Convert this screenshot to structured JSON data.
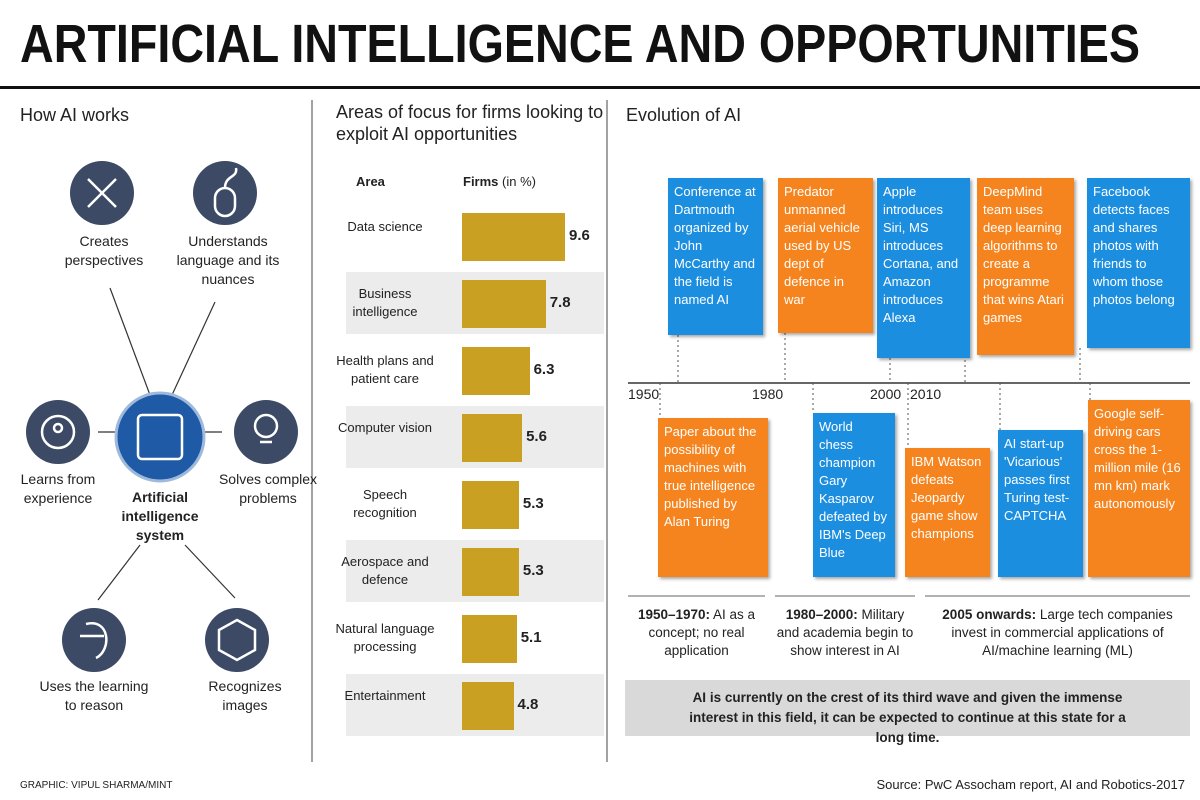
{
  "title": "ARTIFICIAL INTELLIGENCE AND OPPORTUNITIES",
  "how_ai_works": {
    "heading": "How AI works",
    "center": "Artificial intelligence system",
    "capabilities": [
      "Creates perspectives",
      "Understands language and its nuances",
      "Learns from experience",
      "Solves complex problems",
      "Uses the learning to reason",
      "Recognizes images"
    ]
  },
  "chart_data": {
    "type": "bar",
    "title": "Areas of focus for firms looking to exploit AI opportunities",
    "category_header": "Area",
    "value_header": "Firms",
    "value_unit": "(in %)",
    "categories": [
      "Data science",
      "Business intelligence",
      "Health plans and patient care",
      "Computer vision",
      "Speech recognition",
      "Aerospace and defence",
      "Natural language processing",
      "Entertainment"
    ],
    "values": [
      9.6,
      7.8,
      6.3,
      5.6,
      5.3,
      5.3,
      5.1,
      4.8
    ],
    "color": "#c9a021"
  },
  "evolution": {
    "heading": "Evolution of AI",
    "years": [
      1950,
      1980,
      2000,
      2010
    ],
    "events_above": [
      "Conference at Dartmouth organized by John McCarthy and the field is named AI",
      "Predator unmanned aerial vehicle used by US dept of defence in war",
      "Apple introduces Siri, MS introduces Cortana, and Amazon introduces Alexa",
      "DeepMind team uses deep learning algorithms to create a programme that wins Atari games",
      "Facebook detects faces and shares photos with friends to whom those photos belong"
    ],
    "events_below": [
      "Paper about the possibility of machines with true intelligence published by Alan Turing",
      "World chess champion Gary Kasparov defeated by IBM's Deep Blue",
      "IBM Watson defeats Jeopardy game show champions",
      "AI start-up 'Vicarious' passes first Turing test-CAPTCHA",
      "Google self-driving cars cross the 1-million mile (16 mn km) mark autonomously"
    ],
    "eras": [
      {
        "period": "1950–1970:",
        "text": "AI as a concept; no real application"
      },
      {
        "period": "1980–2000:",
        "text": "Military and academia begin to show interest in AI"
      },
      {
        "period": "2005 onwards:",
        "text": "Large tech companies invest in commercial applications of AI/machine learning (ML)"
      }
    ],
    "note": "AI is currently on the crest of its third wave and given the immense interest in this field, it can be expected to continue at this state for a long time."
  },
  "credit": "GRAPHIC: VIPUL SHARMA/MINT",
  "source": "Source: PwC Assocham report, AI and Robotics-2017"
}
